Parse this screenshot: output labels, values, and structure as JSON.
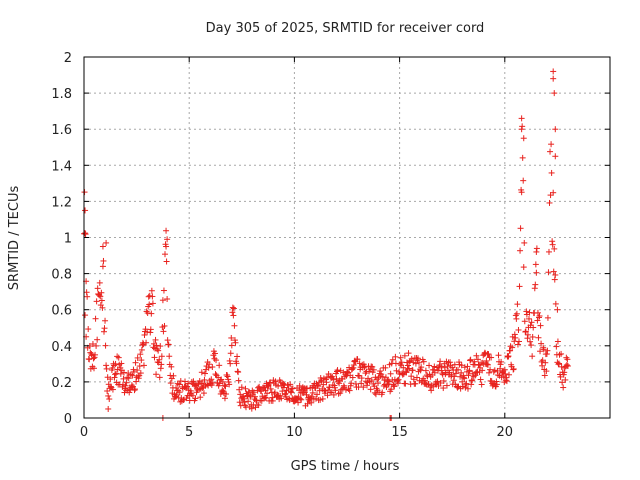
{
  "chart_data": {
    "type": "scatter",
    "title": "Day 305 of 2025, SRMTID for receiver cord",
    "xlabel": "GPS time / hours",
    "ylabel": "SRMTID / TECUs",
    "xlim": [
      0,
      25
    ],
    "ylim": [
      0,
      2
    ],
    "xticks": [
      0,
      5,
      10,
      15,
      20
    ],
    "xtick_labels": [
      "0",
      "5",
      "10",
      "15",
      "20"
    ],
    "yticks": [
      0,
      0.2,
      0.4,
      0.6,
      0.8,
      1,
      1.2,
      1.4,
      1.6,
      1.8,
      2
    ],
    "ytick_labels": [
      "0",
      "0.2",
      "0.4",
      "0.6",
      "0.8",
      "1",
      "1.2",
      "1.4",
      "1.6",
      "1.8",
      "2"
    ],
    "grid": true,
    "marker": "+",
    "series": [
      {
        "name": "SRMTID",
        "color": "#e8221e",
        "profile": [
          [
            0.0,
            1.1
          ],
          [
            0.05,
            0.95
          ],
          [
            0.1,
            0.7
          ],
          [
            0.2,
            0.45
          ],
          [
            0.3,
            0.35
          ],
          [
            0.4,
            0.3
          ],
          [
            0.5,
            0.38
          ],
          [
            0.6,
            0.55
          ],
          [
            0.7,
            0.7
          ],
          [
            0.8,
            0.75
          ],
          [
            0.9,
            0.8
          ],
          [
            1.0,
            0.5
          ],
          [
            1.1,
            0.18
          ],
          [
            1.2,
            0.15
          ],
          [
            1.5,
            0.3
          ],
          [
            1.8,
            0.22
          ],
          [
            2.0,
            0.18
          ],
          [
            2.4,
            0.22
          ],
          [
            2.8,
            0.35
          ],
          [
            3.0,
            0.5
          ],
          [
            3.2,
            0.6
          ],
          [
            3.4,
            0.35
          ],
          [
            3.6,
            0.3
          ],
          [
            3.8,
            0.6
          ],
          [
            3.9,
            0.85
          ],
          [
            4.0,
            0.4
          ],
          [
            4.2,
            0.18
          ],
          [
            4.5,
            0.15
          ],
          [
            5.0,
            0.14
          ],
          [
            5.5,
            0.18
          ],
          [
            6.0,
            0.25
          ],
          [
            6.3,
            0.3
          ],
          [
            6.6,
            0.15
          ],
          [
            6.9,
            0.2
          ],
          [
            7.1,
            0.55
          ],
          [
            7.2,
            0.35
          ],
          [
            7.4,
            0.12
          ],
          [
            8.0,
            0.1
          ],
          [
            8.5,
            0.13
          ],
          [
            9.0,
            0.15
          ],
          [
            9.5,
            0.16
          ],
          [
            10.0,
            0.13
          ],
          [
            10.5,
            0.12
          ],
          [
            11.0,
            0.14
          ],
          [
            11.5,
            0.18
          ],
          [
            12.0,
            0.2
          ],
          [
            12.5,
            0.22
          ],
          [
            13.0,
            0.25
          ],
          [
            13.5,
            0.23
          ],
          [
            14.0,
            0.2
          ],
          [
            14.5,
            0.22
          ],
          [
            15.0,
            0.28
          ],
          [
            15.5,
            0.27
          ],
          [
            16.0,
            0.25
          ],
          [
            16.5,
            0.22
          ],
          [
            17.0,
            0.24
          ],
          [
            17.5,
            0.26
          ],
          [
            18.0,
            0.22
          ],
          [
            18.5,
            0.25
          ],
          [
            19.0,
            0.28
          ],
          [
            19.5,
            0.25
          ],
          [
            20.0,
            0.28
          ],
          [
            20.4,
            0.35
          ],
          [
            20.7,
            0.6
          ],
          [
            20.85,
            1.45
          ],
          [
            20.95,
            0.6
          ],
          [
            21.1,
            0.5
          ],
          [
            21.3,
            0.4
          ],
          [
            21.5,
            0.8
          ],
          [
            21.6,
            0.6
          ],
          [
            21.8,
            0.35
          ],
          [
            22.0,
            0.3
          ],
          [
            22.2,
            1.5
          ],
          [
            22.35,
            0.8
          ],
          [
            22.5,
            0.4
          ],
          [
            22.8,
            0.22
          ],
          [
            23.0,
            0.3
          ]
        ],
        "spikes": [
          [
            0.05,
            1.15
          ],
          [
            0.05,
            0.57
          ],
          [
            0.1,
            0.45
          ],
          [
            0.9,
            0.84
          ],
          [
            1.05,
            0.97
          ],
          [
            1.15,
            0.05
          ],
          [
            3.75,
            0.0
          ],
          [
            3.95,
            0.99
          ],
          [
            3.9,
            0.95
          ],
          [
            14.55,
            0.0
          ],
          [
            14.6,
            0.0
          ],
          [
            20.8,
            1.66
          ],
          [
            20.8,
            1.6
          ],
          [
            20.9,
            1.55
          ],
          [
            21.5,
            0.92
          ],
          [
            22.3,
            1.92
          ],
          [
            22.3,
            1.88
          ],
          [
            22.35,
            1.8
          ],
          [
            22.4,
            1.6
          ],
          [
            22.4,
            1.45
          ],
          [
            22.5,
            0.6
          ]
        ]
      }
    ]
  }
}
